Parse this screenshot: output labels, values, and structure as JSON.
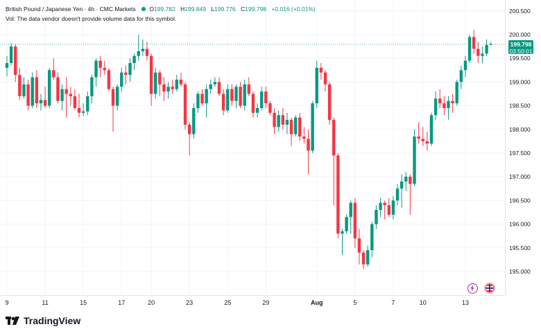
{
  "header": {
    "symbol_line": "British Pound / Japanese Yen · 4h · CMC Markets",
    "ohlc": [
      {
        "label": "O",
        "value": "199.782"
      },
      {
        "label": "H",
        "value": "199.849"
      },
      {
        "label": "L",
        "value": "199.776"
      },
      {
        "label": "C",
        "value": "199.798"
      }
    ],
    "change": "+0.016 (+0.01%)",
    "volume_note": "Vol: The data vendor doesn't provide volume data for this symbol."
  },
  "price_label": {
    "price": "199.798",
    "countdown": "03:50:01"
  },
  "watermark": "TradingView",
  "colors": {
    "up": "#089981",
    "down": "#f23645",
    "grid": "#f0f3fa",
    "axis_text": "#131722"
  },
  "chart_data": {
    "type": "candlestick",
    "title": "British Pound / Japanese Yen · 4h · CMC Markets",
    "ylim": [
      194.6,
      200.7
    ],
    "y_ticks": [
      "195.000",
      "195.500",
      "196.000",
      "196.500",
      "197.000",
      "197.500",
      "198.000",
      "198.500",
      "199.000",
      "199.500",
      "200.000",
      "200.500"
    ],
    "x_ticks": [
      {
        "label": "9",
        "index": 0
      },
      {
        "label": "11",
        "index": 9
      },
      {
        "label": "15",
        "index": 18
      },
      {
        "label": "17",
        "index": 27
      },
      {
        "label": "20",
        "index": 34
      },
      {
        "label": "23",
        "index": 43
      },
      {
        "label": "25",
        "index": 52
      },
      {
        "label": "29",
        "index": 61
      },
      {
        "label": "Aug",
        "index": 73,
        "bold": true
      },
      {
        "label": "5",
        "index": 82
      },
      {
        "label": "7",
        "index": 91
      },
      {
        "label": "10",
        "index": 98
      },
      {
        "label": "13",
        "index": 108
      }
    ],
    "candles": [
      {
        "o": 199.3,
        "h": 199.55,
        "l": 199.12,
        "c": 199.4
      },
      {
        "o": 199.4,
        "h": 199.82,
        "l": 199.35,
        "c": 199.75
      },
      {
        "o": 199.75,
        "h": 199.8,
        "l": 199.0,
        "c": 199.15
      },
      {
        "o": 199.15,
        "h": 199.3,
        "l": 198.62,
        "c": 198.7
      },
      {
        "o": 198.7,
        "h": 199.1,
        "l": 198.65,
        "c": 198.95
      },
      {
        "o": 198.95,
        "h": 199.05,
        "l": 198.4,
        "c": 198.5
      },
      {
        "o": 198.5,
        "h": 199.2,
        "l": 198.45,
        "c": 199.1
      },
      {
        "o": 199.1,
        "h": 199.25,
        "l": 198.45,
        "c": 198.55
      },
      {
        "o": 198.55,
        "h": 198.75,
        "l": 198.4,
        "c": 198.62
      },
      {
        "o": 198.62,
        "h": 198.9,
        "l": 198.45,
        "c": 198.5
      },
      {
        "o": 198.5,
        "h": 199.3,
        "l": 198.45,
        "c": 199.25
      },
      {
        "o": 199.25,
        "h": 199.5,
        "l": 199.05,
        "c": 199.1
      },
      {
        "o": 199.1,
        "h": 199.2,
        "l": 198.55,
        "c": 198.6
      },
      {
        "o": 198.6,
        "h": 198.95,
        "l": 198.4,
        "c": 198.85
      },
      {
        "o": 198.85,
        "h": 199.1,
        "l": 198.25,
        "c": 198.75
      },
      {
        "o": 198.75,
        "h": 198.9,
        "l": 198.5,
        "c": 198.7
      },
      {
        "o": 198.7,
        "h": 198.85,
        "l": 198.4,
        "c": 198.45
      },
      {
        "o": 198.45,
        "h": 198.75,
        "l": 198.25,
        "c": 198.35
      },
      {
        "o": 198.35,
        "h": 198.55,
        "l": 198.28,
        "c": 198.38
      },
      {
        "o": 198.38,
        "h": 198.8,
        "l": 198.3,
        "c": 198.7
      },
      {
        "o": 198.7,
        "h": 199.15,
        "l": 198.55,
        "c": 199.1
      },
      {
        "o": 199.1,
        "h": 199.5,
        "l": 198.9,
        "c": 199.45
      },
      {
        "o": 199.45,
        "h": 199.55,
        "l": 199.1,
        "c": 199.3
      },
      {
        "o": 199.3,
        "h": 199.45,
        "l": 199.15,
        "c": 199.25
      },
      {
        "o": 199.25,
        "h": 199.3,
        "l": 198.8,
        "c": 198.85
      },
      {
        "o": 198.85,
        "h": 198.9,
        "l": 197.95,
        "c": 198.5
      },
      {
        "o": 198.5,
        "h": 198.95,
        "l": 198.4,
        "c": 198.9
      },
      {
        "o": 198.9,
        "h": 199.3,
        "l": 198.8,
        "c": 199.2
      },
      {
        "o": 199.2,
        "h": 199.35,
        "l": 198.95,
        "c": 199.15
      },
      {
        "o": 199.15,
        "h": 199.5,
        "l": 199.0,
        "c": 199.4
      },
      {
        "o": 199.4,
        "h": 199.6,
        "l": 199.25,
        "c": 199.55
      },
      {
        "o": 199.55,
        "h": 200.0,
        "l": 199.45,
        "c": 199.65
      },
      {
        "o": 199.65,
        "h": 199.9,
        "l": 199.55,
        "c": 199.7
      },
      {
        "o": 199.7,
        "h": 199.85,
        "l": 199.45,
        "c": 199.55
      },
      {
        "o": 199.55,
        "h": 199.6,
        "l": 198.5,
        "c": 198.75
      },
      {
        "o": 198.75,
        "h": 199.3,
        "l": 198.65,
        "c": 199.2
      },
      {
        "o": 199.2,
        "h": 199.25,
        "l": 198.7,
        "c": 198.95
      },
      {
        "o": 198.95,
        "h": 199.1,
        "l": 198.6,
        "c": 198.8
      },
      {
        "o": 198.8,
        "h": 199.0,
        "l": 198.65,
        "c": 198.9
      },
      {
        "o": 198.9,
        "h": 199.05,
        "l": 198.75,
        "c": 198.85
      },
      {
        "o": 198.85,
        "h": 199.15,
        "l": 198.8,
        "c": 199.05
      },
      {
        "o": 199.05,
        "h": 199.2,
        "l": 198.9,
        "c": 198.95
      },
      {
        "o": 198.95,
        "h": 199.0,
        "l": 198.0,
        "c": 198.1
      },
      {
        "o": 198.1,
        "h": 198.15,
        "l": 197.45,
        "c": 197.9
      },
      {
        "o": 197.9,
        "h": 198.55,
        "l": 197.8,
        "c": 198.45
      },
      {
        "o": 198.45,
        "h": 198.8,
        "l": 198.35,
        "c": 198.75
      },
      {
        "o": 198.75,
        "h": 198.85,
        "l": 198.5,
        "c": 198.55
      },
      {
        "o": 198.55,
        "h": 198.95,
        "l": 198.25,
        "c": 198.85
      },
      {
        "o": 198.85,
        "h": 199.05,
        "l": 198.75,
        "c": 198.95
      },
      {
        "o": 198.95,
        "h": 199.1,
        "l": 198.9,
        "c": 199.0
      },
      {
        "o": 199.0,
        "h": 199.1,
        "l": 198.7,
        "c": 198.75
      },
      {
        "o": 198.75,
        "h": 198.85,
        "l": 198.3,
        "c": 198.4
      },
      {
        "o": 198.4,
        "h": 198.95,
        "l": 198.35,
        "c": 198.85
      },
      {
        "o": 198.85,
        "h": 198.95,
        "l": 198.5,
        "c": 198.6
      },
      {
        "o": 198.6,
        "h": 198.95,
        "l": 198.45,
        "c": 198.9
      },
      {
        "o": 198.9,
        "h": 199.0,
        "l": 198.45,
        "c": 198.5
      },
      {
        "o": 198.5,
        "h": 199.05,
        "l": 198.4,
        "c": 198.95
      },
      {
        "o": 198.95,
        "h": 199.1,
        "l": 198.7,
        "c": 198.75
      },
      {
        "o": 198.75,
        "h": 198.8,
        "l": 198.25,
        "c": 198.35
      },
      {
        "o": 198.35,
        "h": 198.55,
        "l": 198.25,
        "c": 198.45
      },
      {
        "o": 198.45,
        "h": 198.9,
        "l": 198.4,
        "c": 198.8
      },
      {
        "o": 198.8,
        "h": 198.9,
        "l": 198.45,
        "c": 198.55
      },
      {
        "o": 198.55,
        "h": 198.6,
        "l": 198.3,
        "c": 198.35
      },
      {
        "o": 198.35,
        "h": 198.45,
        "l": 197.9,
        "c": 198.05
      },
      {
        "o": 198.05,
        "h": 198.4,
        "l": 197.95,
        "c": 198.3
      },
      {
        "o": 198.3,
        "h": 198.45,
        "l": 198.0,
        "c": 198.1
      },
      {
        "o": 198.1,
        "h": 198.35,
        "l": 197.9,
        "c": 198.2
      },
      {
        "o": 198.2,
        "h": 198.25,
        "l": 197.65,
        "c": 197.9
      },
      {
        "o": 197.9,
        "h": 198.3,
        "l": 197.85,
        "c": 198.25
      },
      {
        "o": 198.25,
        "h": 198.35,
        "l": 197.75,
        "c": 197.85
      },
      {
        "o": 197.85,
        "h": 198.05,
        "l": 197.7,
        "c": 197.8
      },
      {
        "o": 197.8,
        "h": 198.0,
        "l": 197.05,
        "c": 197.55
      },
      {
        "o": 197.55,
        "h": 198.6,
        "l": 197.5,
        "c": 198.55
      },
      {
        "o": 198.55,
        "h": 199.45,
        "l": 198.45,
        "c": 199.3
      },
      {
        "o": 199.3,
        "h": 199.4,
        "l": 199.05,
        "c": 199.2
      },
      {
        "o": 199.2,
        "h": 199.25,
        "l": 198.8,
        "c": 198.95
      },
      {
        "o": 198.95,
        "h": 199.0,
        "l": 198.1,
        "c": 198.2
      },
      {
        "o": 198.2,
        "h": 198.25,
        "l": 196.4,
        "c": 197.45
      },
      {
        "o": 197.45,
        "h": 197.5,
        "l": 195.7,
        "c": 195.8
      },
      {
        "o": 195.8,
        "h": 195.9,
        "l": 195.35,
        "c": 195.85
      },
      {
        "o": 195.85,
        "h": 196.2,
        "l": 195.8,
        "c": 196.15
      },
      {
        "o": 196.15,
        "h": 196.5,
        "l": 195.8,
        "c": 196.45
      },
      {
        "o": 196.45,
        "h": 196.55,
        "l": 195.5,
        "c": 195.7
      },
      {
        "o": 195.7,
        "h": 195.9,
        "l": 195.15,
        "c": 195.4
      },
      {
        "o": 195.4,
        "h": 195.45,
        "l": 195.05,
        "c": 195.15
      },
      {
        "o": 195.15,
        "h": 195.55,
        "l": 195.1,
        "c": 195.45
      },
      {
        "o": 195.45,
        "h": 196.05,
        "l": 195.3,
        "c": 196.0
      },
      {
        "o": 196.0,
        "h": 196.4,
        "l": 195.9,
        "c": 196.3
      },
      {
        "o": 196.3,
        "h": 196.55,
        "l": 196.15,
        "c": 196.45
      },
      {
        "o": 196.45,
        "h": 196.5,
        "l": 196.1,
        "c": 196.4
      },
      {
        "o": 196.4,
        "h": 196.55,
        "l": 196.15,
        "c": 196.2
      },
      {
        "o": 196.2,
        "h": 196.6,
        "l": 196.1,
        "c": 196.5
      },
      {
        "o": 196.5,
        "h": 196.85,
        "l": 196.4,
        "c": 196.75
      },
      {
        "o": 196.75,
        "h": 197.05,
        "l": 196.35,
        "c": 196.9
      },
      {
        "o": 196.9,
        "h": 197.1,
        "l": 196.7,
        "c": 197.0
      },
      {
        "o": 197.0,
        "h": 197.05,
        "l": 196.2,
        "c": 196.85
      },
      {
        "o": 196.85,
        "h": 198.0,
        "l": 196.8,
        "c": 197.85
      },
      {
        "o": 197.85,
        "h": 198.15,
        "l": 197.7,
        "c": 197.8
      },
      {
        "o": 197.8,
        "h": 198.05,
        "l": 197.65,
        "c": 197.75
      },
      {
        "o": 197.75,
        "h": 197.95,
        "l": 197.55,
        "c": 197.7
      },
      {
        "o": 197.7,
        "h": 198.35,
        "l": 197.65,
        "c": 198.3
      },
      {
        "o": 198.3,
        "h": 198.8,
        "l": 198.2,
        "c": 198.65
      },
      {
        "o": 198.65,
        "h": 198.85,
        "l": 198.45,
        "c": 198.55
      },
      {
        "o": 198.55,
        "h": 198.7,
        "l": 198.3,
        "c": 198.45
      },
      {
        "o": 198.45,
        "h": 198.7,
        "l": 198.2,
        "c": 198.6
      },
      {
        "o": 198.6,
        "h": 198.75,
        "l": 198.35,
        "c": 198.55
      },
      {
        "o": 198.55,
        "h": 199.05,
        "l": 198.5,
        "c": 199.0
      },
      {
        "o": 199.0,
        "h": 199.35,
        "l": 198.85,
        "c": 199.25
      },
      {
        "o": 199.25,
        "h": 199.55,
        "l": 199.1,
        "c": 199.45
      },
      {
        "o": 199.45,
        "h": 200.0,
        "l": 199.4,
        "c": 199.95
      },
      {
        "o": 199.95,
        "h": 200.1,
        "l": 199.6,
        "c": 199.7
      },
      {
        "o": 199.7,
        "h": 199.85,
        "l": 199.4,
        "c": 199.55
      },
      {
        "o": 199.55,
        "h": 199.75,
        "l": 199.4,
        "c": 199.6
      },
      {
        "o": 199.6,
        "h": 199.9,
        "l": 199.55,
        "c": 199.78
      },
      {
        "o": 199.782,
        "h": 199.849,
        "l": 199.776,
        "c": 199.798
      }
    ],
    "last_price": 199.798
  }
}
